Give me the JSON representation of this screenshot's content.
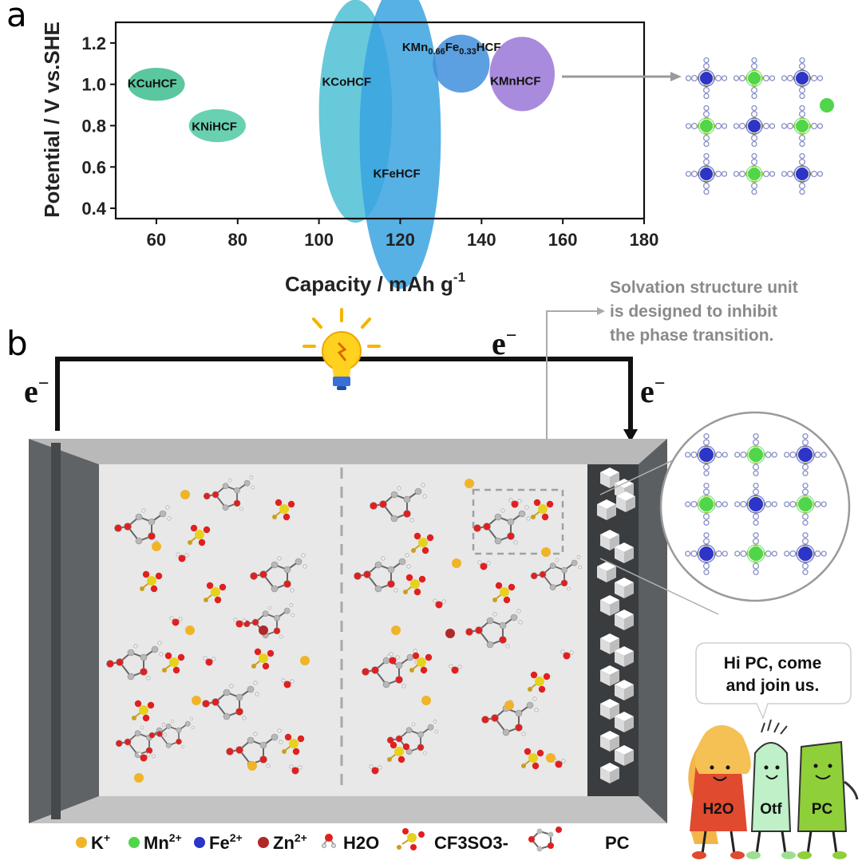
{
  "panel_a": {
    "label": "a",
    "chart_data": {
      "type": "scatter",
      "title": "",
      "xlabel": "Capacity / mAh g-1",
      "xlabel_main": "Capacity / mAh g",
      "xlabel_sup": "-1",
      "ylabel": "Potential / V vs.SHE",
      "xlim": [
        50,
        180
      ],
      "ylim": [
        0.35,
        1.3
      ],
      "xticks": [
        60,
        80,
        100,
        120,
        140,
        160,
        180
      ],
      "yticks": [
        0.4,
        0.6,
        0.8,
        1.0,
        1.2
      ],
      "ytick_labels": [
        "0.4",
        "0.6",
        "0.8",
        "1.0",
        "1.2"
      ],
      "series": [
        {
          "name": "KCuHCF",
          "x": 60,
          "y": 1.0,
          "x_span": 7,
          "y_span": 0.08,
          "color": "#3dbd8e"
        },
        {
          "name": "KNiHCF",
          "x": 75,
          "y": 0.8,
          "x_span": 7,
          "y_span": 0.08,
          "color": "#4fc9a4"
        },
        {
          "name": "KCoHCF",
          "x": 109,
          "y": 0.87,
          "x_span": 9,
          "y_span": 0.54,
          "color": "#4dc0d4"
        },
        {
          "name": "KFeHCF",
          "x": 120,
          "y": 0.75,
          "x_span": 10,
          "y_span": 0.74,
          "color": "#3aa3e0"
        },
        {
          "name": "KMn0.66Fe0.33HCF",
          "x": 135,
          "y": 1.1,
          "x_span": 7,
          "y_span": 0.14,
          "color": "#3f8fdc"
        },
        {
          "name": "KMnHCF",
          "x": 150,
          "y": 1.05,
          "x_span": 8,
          "y_span": 0.18,
          "color": "#9977d6"
        }
      ],
      "point_labels": [
        {
          "name": "KCuHCF",
          "parts": [
            {
              "t": "KCuHCF"
            }
          ]
        },
        {
          "name": "KNiHCF",
          "parts": [
            {
              "t": "KNiHCF"
            }
          ]
        },
        {
          "name": "KCoHCF",
          "parts": [
            {
              "t": "KCoHCF"
            }
          ]
        },
        {
          "name": "KFeHCF",
          "parts": [
            {
              "t": "KFeHCF"
            }
          ]
        },
        {
          "name": "KMn0.66Fe0.33HCF",
          "parts": [
            {
              "t": "KMn"
            },
            {
              "t": "0.66",
              "sub": true
            },
            {
              "t": "Fe"
            },
            {
              "t": "0.33",
              "sub": true
            },
            {
              "t": "HCF"
            }
          ]
        },
        {
          "name": "KMnHCF",
          "parts": [
            {
              "t": "KMnHCF"
            }
          ]
        }
      ]
    }
  },
  "panel_b": {
    "label": "b",
    "electron_left": "e",
    "electron_top": "e",
    "electron_right": "e",
    "electron_sup": "−",
    "annotation_lines": [
      "Solvation structure unit",
      "is designed to inhibit",
      "the phase transition."
    ],
    "speech_lines": [
      "Hi PC, come",
      "and join us."
    ],
    "characters": [
      "H2O",
      "Otf",
      "PC"
    ]
  },
  "legend": [
    {
      "label": "K",
      "sup": "+",
      "color": "#f0b429"
    },
    {
      "label": "Mn",
      "sup": "2+",
      "color": "#4fd64a"
    },
    {
      "label": "Fe",
      "sup": "2+",
      "color": "#2c35c8"
    },
    {
      "label": "Zn",
      "sup": "2+",
      "color": "#b0282a"
    },
    {
      "label": "H2O"
    },
    {
      "label": "CF3SO3-"
    },
    {
      "label": "PC"
    }
  ],
  "colors": {
    "k_ion": "#f0b429",
    "mn_ion": "#4fd64a",
    "fe_ion": "#2c35c8",
    "zn_ion": "#b0282a",
    "oxygen": "#e02020",
    "carbon": "#b8b8b8",
    "sulfur": "#e6d21c"
  }
}
